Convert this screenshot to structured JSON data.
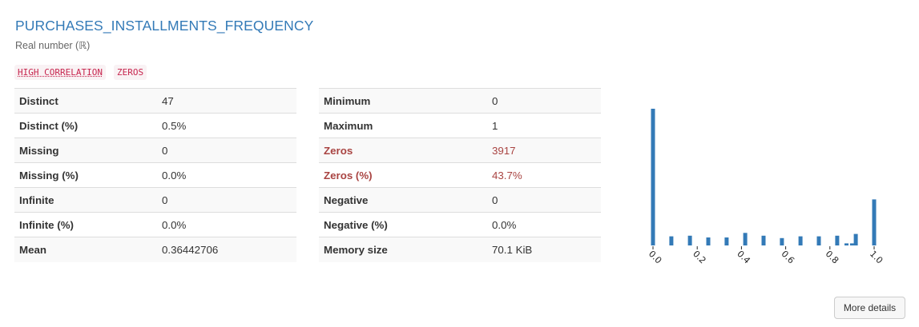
{
  "variable": {
    "name": "PURCHASES_INSTALLMENTS_FREQUENCY",
    "type": "Real number (ℝ)",
    "badges": [
      "HIGH CORRELATION",
      "ZEROS"
    ]
  },
  "stats_left": [
    {
      "label": "Distinct",
      "value": "47"
    },
    {
      "label": "Distinct (%)",
      "value": "0.5%"
    },
    {
      "label": "Missing",
      "value": "0"
    },
    {
      "label": "Missing (%)",
      "value": "0.0%"
    },
    {
      "label": "Infinite",
      "value": "0"
    },
    {
      "label": "Infinite (%)",
      "value": "0.0%"
    },
    {
      "label": "Mean",
      "value": "0.36442706"
    }
  ],
  "stats_right": [
    {
      "label": "Minimum",
      "value": "0"
    },
    {
      "label": "Maximum",
      "value": "1"
    },
    {
      "label": "Zeros",
      "value": "3917",
      "alert": true
    },
    {
      "label": "Zeros (%)",
      "value": "43.7%",
      "alert": true
    },
    {
      "label": "Negative",
      "value": "0"
    },
    {
      "label": "Negative (%)",
      "value": "0.0%"
    },
    {
      "label": "Memory size",
      "value": "70.1 KiB"
    }
  ],
  "colors": {
    "title": "#337ab7",
    "bar": "#337ab7",
    "alert": "#a94442",
    "badge_text": "#c7254e",
    "badge_bg": "#f9f2f4"
  },
  "chart_data": {
    "type": "bar",
    "title": "",
    "xlabel": "",
    "ylabel": "",
    "xlim": [
      0,
      1
    ],
    "grid": false,
    "xticks": [
      "0.0",
      "0.2",
      "0.4",
      "0.6",
      "0.8",
      "1.0"
    ],
    "bins": [
      {
        "x": 0.0,
        "count": 3917
      },
      {
        "x": 0.083,
        "count": 260
      },
      {
        "x": 0.167,
        "count": 280
      },
      {
        "x": 0.25,
        "count": 230
      },
      {
        "x": 0.333,
        "count": 230
      },
      {
        "x": 0.417,
        "count": 360
      },
      {
        "x": 0.5,
        "count": 280
      },
      {
        "x": 0.583,
        "count": 210
      },
      {
        "x": 0.667,
        "count": 260
      },
      {
        "x": 0.75,
        "count": 260
      },
      {
        "x": 0.833,
        "count": 280
      },
      {
        "x": 0.875,
        "count": 60
      },
      {
        "x": 0.9,
        "count": 60
      },
      {
        "x": 0.917,
        "count": 330
      },
      {
        "x": 1.0,
        "count": 1320
      }
    ]
  },
  "buttons": {
    "more_details": "More details"
  }
}
